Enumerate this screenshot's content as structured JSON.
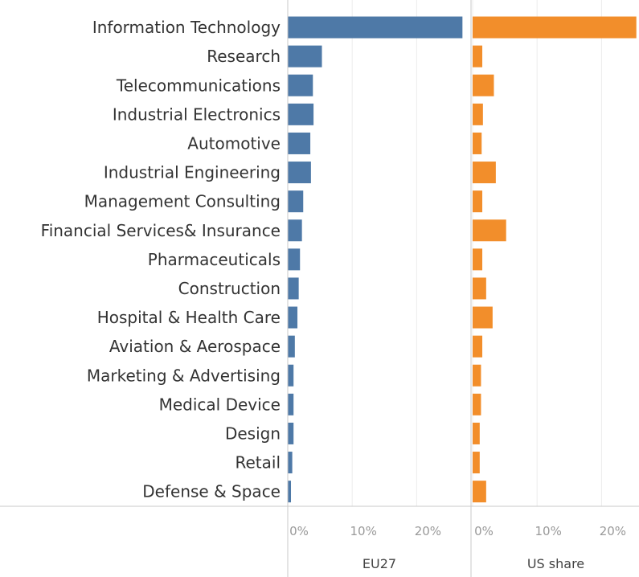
{
  "chart_data": {
    "type": "bar",
    "orientation": "horizontal",
    "categories": [
      "Information Technology",
      "Research",
      "Telecommunications",
      "Industrial Electronics",
      "Automotive",
      "Industrial Engineering",
      "Management Consulting",
      "Financial Services& Insurance",
      "Pharmaceuticals",
      "Construction",
      "Hospital & Health Care",
      "Aviation & Aerospace",
      "Marketing & Advertising",
      "Medical Device",
      "Design",
      "Retail",
      "Defense & Space"
    ],
    "series": [
      {
        "name": "EU27",
        "color": "#4e79a7",
        "values": [
          27.1,
          5.3,
          3.9,
          4.0,
          3.5,
          3.6,
          2.4,
          2.2,
          1.9,
          1.7,
          1.5,
          1.1,
          0.9,
          0.9,
          0.9,
          0.7,
          0.5
        ]
      },
      {
        "name": "US share",
        "color": "#f28e2b",
        "values": [
          25.4,
          1.5,
          3.3,
          1.6,
          1.4,
          3.6,
          1.5,
          5.2,
          1.5,
          2.1,
          3.1,
          1.5,
          1.3,
          1.3,
          1.1,
          1.1,
          2.1
        ]
      }
    ],
    "ticks": [
      "0%",
      "10%",
      "20%"
    ],
    "tick_values": [
      0,
      10,
      20
    ],
    "xlim": [
      0,
      27.5
    ],
    "grid": true,
    "legend": "none"
  }
}
